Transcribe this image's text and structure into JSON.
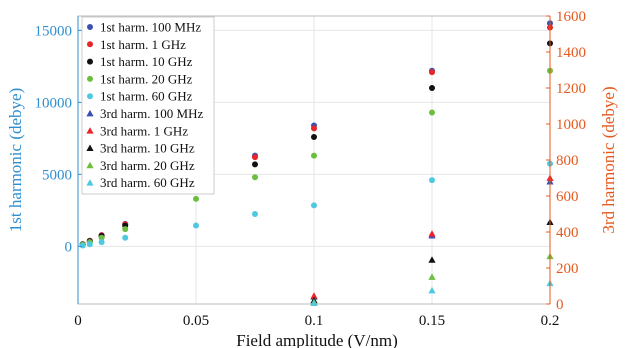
{
  "chart_data": {
    "type": "scatter",
    "title": "",
    "xlabel": "Field amplitude (V/nm)",
    "ylabel_left": "1st harmonic (debye)",
    "ylabel_right": "3rd harmonic (debye)",
    "xlim": [
      0,
      0.2
    ],
    "ylim_left": [
      -4000,
      16000
    ],
    "ylim_right": [
      0,
      1600
    ],
    "x_ticks": [
      "0",
      "0.05",
      "0.1",
      "0.15",
      "0.2"
    ],
    "y_left_ticks": [
      "0",
      "5000",
      "10000",
      "15000"
    ],
    "y_right_ticks": [
      "0",
      "200",
      "400",
      "600",
      "800",
      "1000",
      "1200",
      "1400",
      "1600"
    ],
    "x_tick_values": [
      0,
      0.05,
      0.1,
      0.15,
      0.2
    ],
    "y_left_tick_values": [
      0,
      5000,
      10000,
      15000
    ],
    "y_right_tick_values": [
      0,
      200,
      400,
      600,
      800,
      1000,
      1200,
      1400,
      1600
    ],
    "grid": true,
    "legend_position": "top-left",
    "x": [
      0.002,
      0.005,
      0.01,
      0.02,
      0.05,
      0.075,
      0.1,
      0.15,
      0.2
    ],
    "series": [
      {
        "name": "1st harm. 100 MHz",
        "axis": "left",
        "marker": "circle",
        "color": "#3b4fb0",
        "values": [
          155,
          390,
          780,
          1560,
          4350,
          6300,
          8400,
          12200,
          15500
        ]
      },
      {
        "name": "1st harm. 1 GHz",
        "axis": "left",
        "marker": "circle",
        "color": "#e8252a",
        "values": [
          150,
          385,
          770,
          1540,
          4300,
          6200,
          8200,
          12100,
          15200
        ]
      },
      {
        "name": "1st harm. 10 GHz",
        "axis": "left",
        "marker": "circle",
        "color": "#111111",
        "values": [
          140,
          360,
          720,
          1440,
          3900,
          5700,
          7600,
          11000,
          14100
        ]
      },
      {
        "name": "1st harm. 20 GHz",
        "axis": "left",
        "marker": "circle",
        "color": "#6cbf3e",
        "values": [
          120,
          300,
          600,
          1200,
          3300,
          4800,
          6300,
          9300,
          12200
        ]
      },
      {
        "name": "1st harm. 60 GHz",
        "axis": "left",
        "marker": "circle",
        "color": "#4fc8e0",
        "values": [
          60,
          150,
          300,
          600,
          1450,
          2250,
          2850,
          4600,
          5750
        ]
      },
      {
        "name": "3rd harm. 100 MHz",
        "axis": "right",
        "marker": "triangle",
        "color": "#3b4fb0",
        "values": [
          null,
          null,
          null,
          null,
          null,
          null,
          40,
          380,
          680
        ]
      },
      {
        "name": "3rd harm. 1 GHz",
        "axis": "right",
        "marker": "triangle",
        "color": "#e8252a",
        "values": [
          null,
          null,
          null,
          null,
          null,
          null,
          45,
          390,
          700
        ]
      },
      {
        "name": "3rd harm. 10 GHz",
        "axis": "right",
        "marker": "triangle",
        "color": "#111111",
        "values": [
          null,
          null,
          null,
          null,
          null,
          null,
          20,
          245,
          455
        ]
      },
      {
        "name": "3rd harm. 20 GHz",
        "axis": "right",
        "marker": "triangle",
        "color": "#6cbf3e",
        "values": [
          null,
          null,
          null,
          null,
          null,
          null,
          10,
          150,
          265
        ]
      },
      {
        "name": "3rd harm. 60 GHz",
        "axis": "right",
        "marker": "triangle",
        "color": "#4fc8e0",
        "values": [
          null,
          null,
          null,
          null,
          null,
          null,
          5,
          75,
          115
        ]
      }
    ],
    "left_axis_color": "#2f8fd0",
    "right_axis_color": "#e45a1e"
  }
}
